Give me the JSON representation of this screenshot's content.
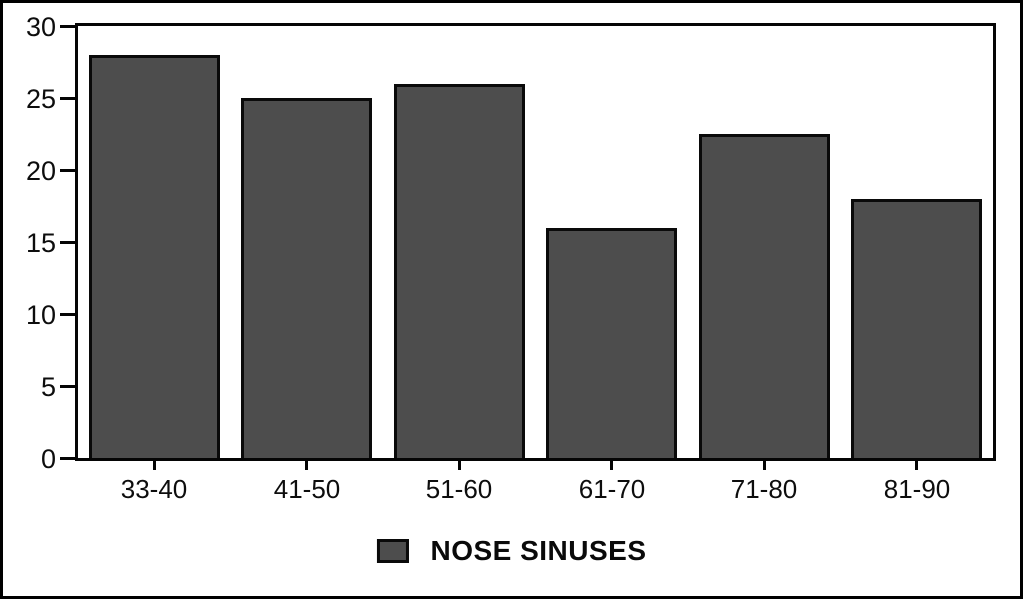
{
  "chart_data": {
    "type": "bar",
    "categories": [
      "33-40",
      "41-50",
      "51-60",
      "61-70",
      "71-80",
      "81-90"
    ],
    "values": [
      28,
      25,
      26,
      16,
      22.5,
      18
    ],
    "series": [
      {
        "name": "NOSE SINUSES",
        "values": [
          28,
          25,
          26,
          16,
          22.5,
          18
        ]
      }
    ],
    "title": "",
    "xlabel": "",
    "ylabel": "",
    "ylim": [
      0,
      30
    ],
    "yticks": [
      0,
      5,
      10,
      15,
      20,
      25,
      30
    ],
    "grid": false,
    "legend": {
      "position": "bottom-center",
      "label": "NOSE SINUSES"
    },
    "colors": {
      "bar_fill": "#4d4d4d",
      "bar_border": "#0a0a0a",
      "axis": "#050505",
      "background": "#ffffff"
    }
  }
}
